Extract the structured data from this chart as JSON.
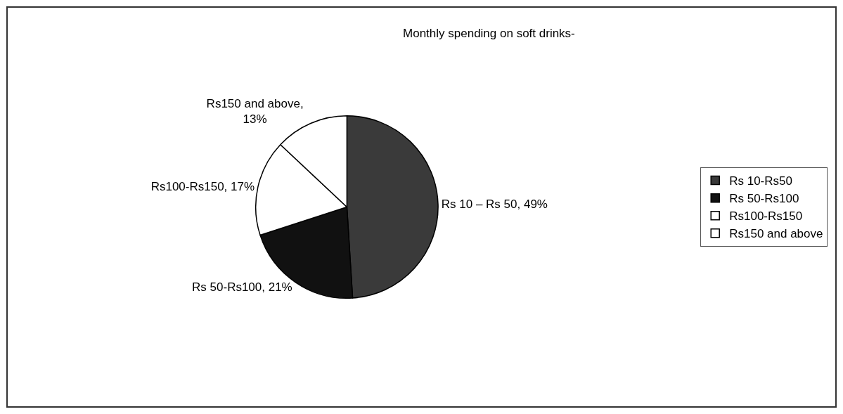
{
  "chart_data": {
    "type": "pie",
    "title": "Monthly spending on soft drinks-",
    "categories": [
      "Rs 10-Rs50",
      "Rs 50-Rs100",
      "Rs100-Rs150",
      "Rs150 and above"
    ],
    "values": [
      49,
      21,
      17,
      13
    ],
    "colors": [
      "#3a3a3a",
      "#111111",
      "#ffffff",
      "#ffffff"
    ],
    "value_labels": [
      "Rs 10 – Rs 50, 49%",
      "Rs 50-Rs100, 21%",
      "Rs100-Rs150, 17%",
      "Rs150 and above,\n13%"
    ],
    "legend": "right"
  }
}
